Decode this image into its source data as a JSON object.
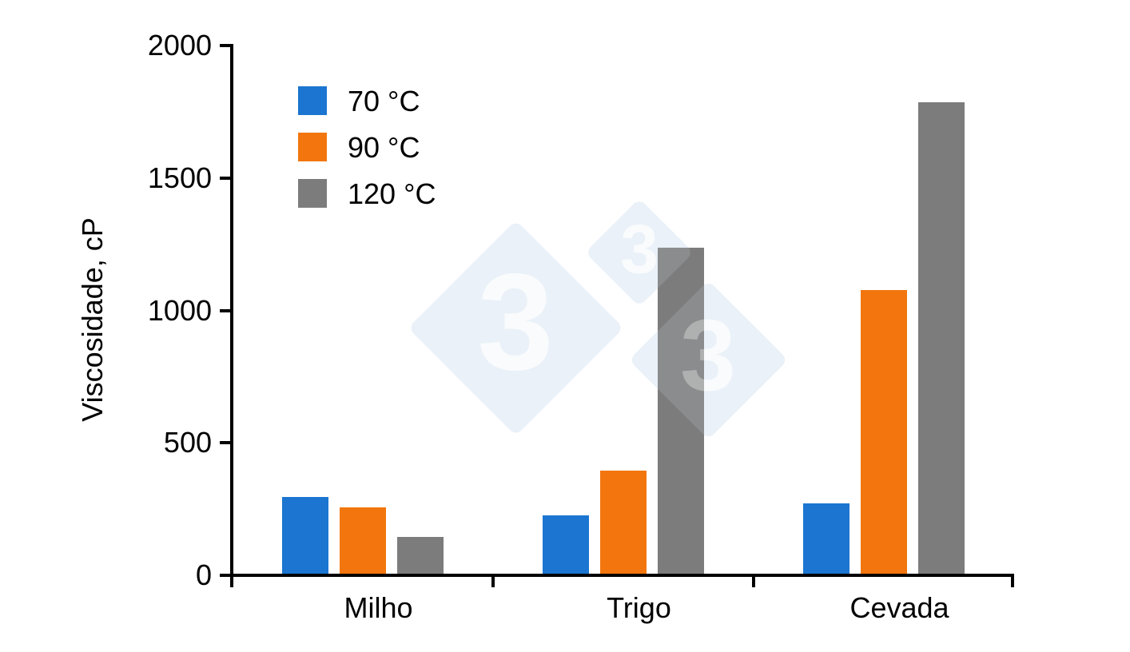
{
  "chart_data": {
    "type": "bar",
    "title": "",
    "xlabel": "",
    "ylabel": "Viscosidade, cP",
    "categories": [
      "Milho",
      "Trigo",
      "Cevada"
    ],
    "series": [
      {
        "name": "70 °C",
        "color": "#1B75D1",
        "values": [
          290,
          220,
          265
        ]
      },
      {
        "name": "90 °C",
        "color": "#F2760D",
        "values": [
          250,
          390,
          1070
        ]
      },
      {
        "name": "120 °C",
        "color": "#7C7C7C",
        "values": [
          140,
          1230,
          1780
        ]
      }
    ],
    "ylim": [
      0,
      2000
    ],
    "yticks": [
      0,
      500,
      1000,
      1500,
      2000
    ],
    "grid": false,
    "legend_position": "upper-left-inside"
  },
  "watermark": {
    "glyph": "3",
    "diamond_color": "#ECF2F8",
    "glyph_color": "#FAFCFE"
  },
  "colors": {
    "axis": "#000000",
    "text": "#000000",
    "background": "#FFFFFF"
  }
}
